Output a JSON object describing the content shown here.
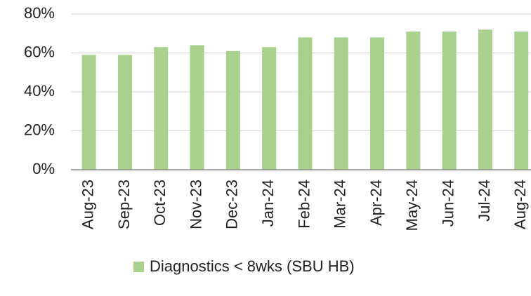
{
  "chart_data": {
    "type": "bar",
    "categories": [
      "Aug-23",
      "Sep-23",
      "Oct-23",
      "Nov-23",
      "Dec-23",
      "Jan-24",
      "Feb-24",
      "Mar-24",
      "Apr-24",
      "May-24",
      "Jun-24",
      "Jul-24",
      "Aug-24"
    ],
    "series": [
      {
        "name": "Diagnostics < 8wks (SBU HB)",
        "color": "#a9d18e",
        "values": [
          59,
          59,
          63,
          64,
          61,
          63,
          68,
          68,
          68,
          71,
          71,
          72,
          71
        ]
      }
    ],
    "ylim": [
      0,
      80
    ],
    "yticks": [
      {
        "value": 0,
        "label": "0%"
      },
      {
        "value": 20,
        "label": "20%"
      },
      {
        "value": 40,
        "label": "40%"
      },
      {
        "value": 60,
        "label": "60%"
      },
      {
        "value": 80,
        "label": "80%"
      }
    ],
    "grid": true,
    "legend": "bottom"
  }
}
